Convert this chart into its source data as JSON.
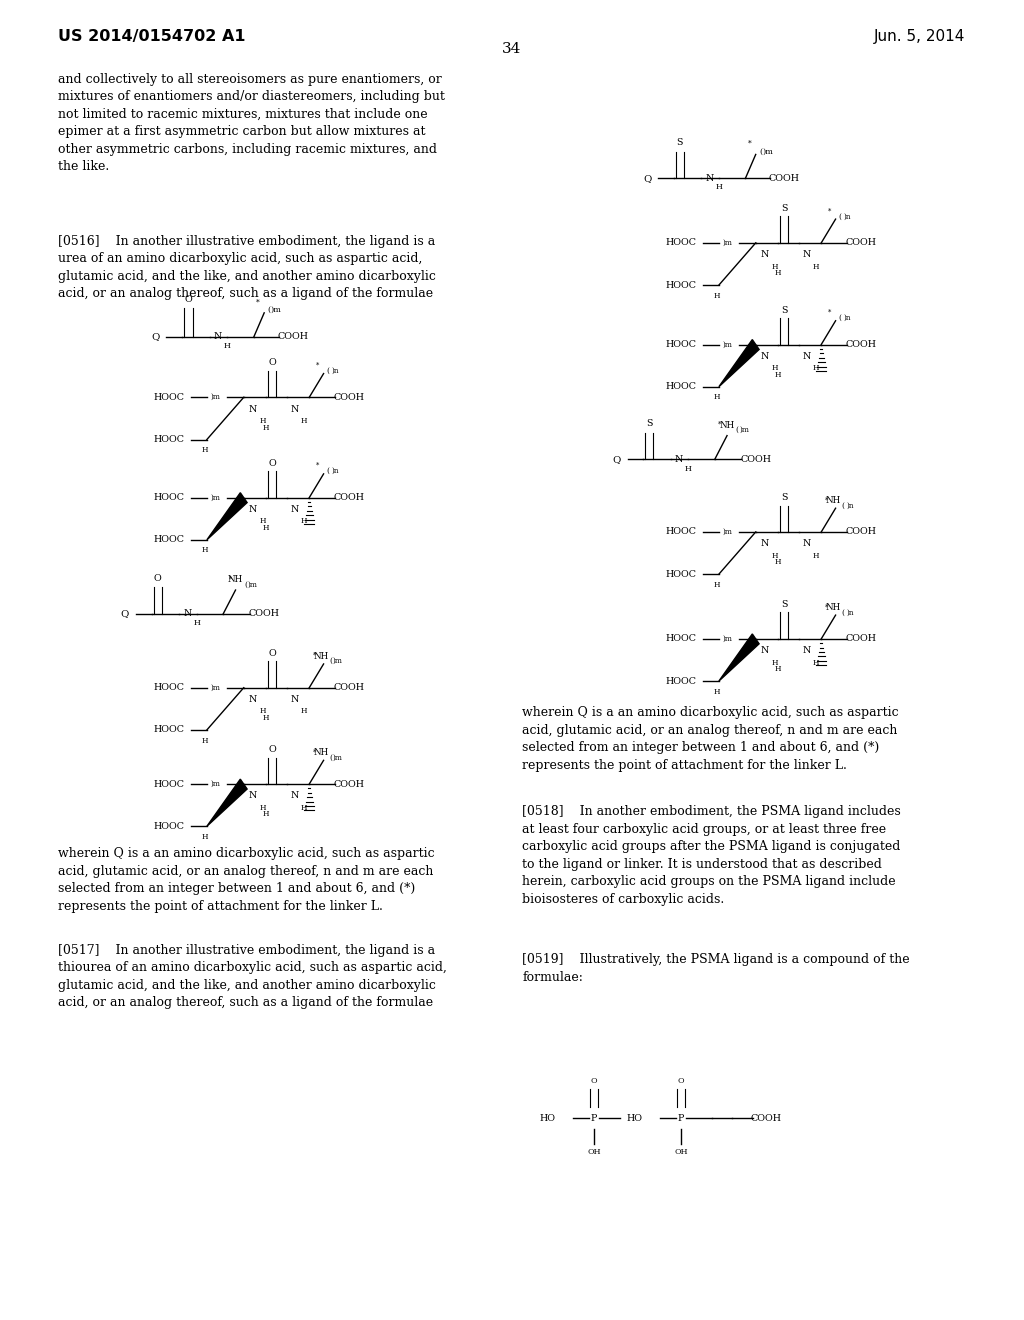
{
  "page_number": "34",
  "patent_number": "US 2014/0154702 A1",
  "date": "Jun. 5, 2014",
  "background_color": "#ffffff",
  "text_color": "#000000"
}
